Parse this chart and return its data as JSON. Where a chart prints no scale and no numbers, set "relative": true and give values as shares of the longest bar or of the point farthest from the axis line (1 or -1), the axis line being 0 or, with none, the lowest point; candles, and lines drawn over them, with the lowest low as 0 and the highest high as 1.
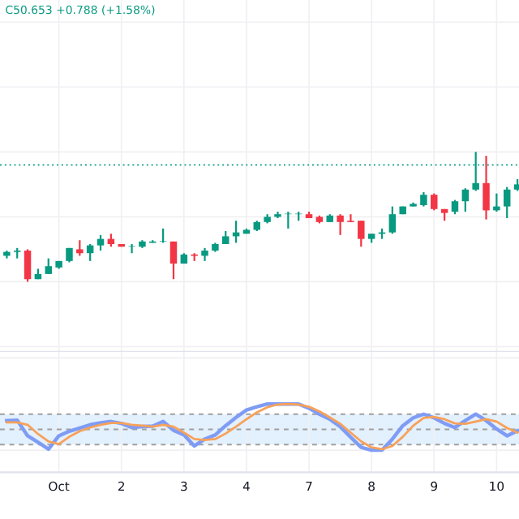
{
  "chart_data": [
    {
      "type": "candlestick",
      "relative": true,
      "tick_labels": false,
      "grid": true,
      "categories": [
        null,
        null,
        null,
        null,
        null,
        null,
        null,
        null,
        null,
        null,
        null,
        null,
        null,
        null,
        null,
        null,
        null,
        null,
        null,
        null,
        null,
        null,
        null,
        null,
        null,
        null,
        null,
        null,
        null,
        null,
        null,
        null,
        null,
        null,
        null,
        null,
        null,
        null,
        null,
        null,
        null,
        null,
        null,
        null,
        null,
        null,
        null,
        null,
        null,
        null
      ],
      "ohlc": [
        [
          0.2,
          0.24,
          0.18,
          0.23
        ],
        [
          0.23,
          0.26,
          0.18,
          0.24
        ],
        [
          0.24,
          0.25,
          0,
          0.02
        ],
        [
          0.02,
          0.1,
          0.02,
          0.06
        ],
        [
          0.06,
          0.18,
          0.06,
          0.12
        ],
        [
          0.11,
          0.16,
          0.1,
          0.16
        ],
        [
          0.16,
          0.26,
          0.15,
          0.26
        ],
        [
          0.25,
          0.32,
          0.2,
          0.22
        ],
        [
          0.22,
          0.29,
          0.16,
          0.28
        ],
        [
          0.28,
          0.36,
          0.24,
          0.33
        ],
        [
          0.33,
          0.37,
          0.27,
          0.29
        ],
        [
          0.29,
          0.29,
          0.27,
          0.27
        ],
        [
          0.27,
          0.29,
          0.22,
          0.27
        ],
        [
          0.27,
          0.32,
          0.26,
          0.31
        ],
        [
          0.3,
          0.32,
          0.3,
          0.31
        ],
        [
          0.31,
          0.41,
          0.3,
          0.31
        ],
        [
          0.31,
          0.31,
          0.02,
          0.14
        ],
        [
          0.14,
          0.22,
          0.14,
          0.21
        ],
        [
          0.21,
          0.22,
          0.16,
          0.2
        ],
        [
          0.2,
          0.26,
          0.16,
          0.24
        ],
        [
          0.24,
          0.3,
          0.23,
          0.29
        ],
        [
          0.29,
          0.39,
          0.29,
          0.35
        ],
        [
          0.35,
          0.47,
          0.3,
          0.38
        ],
        [
          0.37,
          0.41,
          0.37,
          0.4
        ],
        [
          0.4,
          0.47,
          0.39,
          0.46
        ],
        [
          0.46,
          0.52,
          0.45,
          0.5
        ],
        [
          0.5,
          0.54,
          0.49,
          0.52
        ],
        [
          0.52,
          0.54,
          0.41,
          0.52
        ],
        [
          0.52,
          0.54,
          0.47,
          0.52
        ],
        [
          0.52,
          0.54,
          0.49,
          0.49
        ],
        [
          0.5,
          0.51,
          0.45,
          0.46
        ],
        [
          0.46,
          0.52,
          0.46,
          0.51
        ],
        [
          0.51,
          0.52,
          0.36,
          0.46
        ],
        [
          0.47,
          0.52,
          0.46,
          0.46
        ],
        [
          0.47,
          0.47,
          0.27,
          0.33
        ],
        [
          0.33,
          0.37,
          0.3,
          0.37
        ],
        [
          0.37,
          0.41,
          0.33,
          0.38
        ],
        [
          0.38,
          0.58,
          0.37,
          0.52
        ],
        [
          0.52,
          0.58,
          0.52,
          0.58
        ],
        [
          0.58,
          0.61,
          0.58,
          0.6
        ],
        [
          0.59,
          0.69,
          0.58,
          0.67
        ],
        [
          0.67,
          0.68,
          0.55,
          0.56
        ],
        [
          0.56,
          0.56,
          0.47,
          0.53
        ],
        [
          0.54,
          0.63,
          0.52,
          0.62
        ],
        [
          0.62,
          0.72,
          0.54,
          0.71
        ],
        [
          0.71,
          1.0,
          0.7,
          0.76
        ],
        [
          0.76,
          0.97,
          0.48,
          0.55
        ],
        [
          0.55,
          0.68,
          0.54,
          0.58
        ],
        [
          0.58,
          0.73,
          0.49,
          0.71
        ],
        [
          0.71,
          0.79,
          0.7,
          0.75
        ]
      ],
      "colors": [
        "#089981",
        "#089981",
        "#f23645",
        "#089981",
        "#089981",
        "#089981",
        "#089981",
        "#f23645",
        "#089981",
        "#089981",
        "#f23645",
        "#f23645",
        "#089981",
        "#089981",
        "#089981",
        "#089981",
        "#f23645",
        "#089981",
        "#f23645",
        "#089981",
        "#089981",
        "#089981",
        "#089981",
        "#089981",
        "#089981",
        "#089981",
        "#089981",
        "#089981",
        "#089981",
        "#f23645",
        "#f23645",
        "#089981",
        "#f23645",
        "#f23645",
        "#f23645",
        "#089981",
        "#089981",
        "#089981",
        "#089981",
        "#089981",
        "#089981",
        "#f23645",
        "#f23645",
        "#089981",
        "#089981",
        "#089981",
        "#f23645",
        "#089981",
        "#089981",
        "#089981"
      ],
      "ref_lines": [
        {
          "axis": "y",
          "value": 0.9,
          "color": "#089981",
          "line_style": "dotted"
        }
      ],
      "annotations": [
        "C50.653 +0.788 (+1.58%)"
      ]
    },
    {
      "type": "line",
      "relative": true,
      "tick_labels": "x",
      "grid": true,
      "marker": "none",
      "line_style": "solid",
      "categories": [
        null,
        null,
        null,
        null,
        null,
        "Oct",
        null,
        null,
        null,
        null,
        null,
        "2",
        null,
        null,
        null,
        null,
        null,
        "3",
        null,
        null,
        null,
        null,
        null,
        "4",
        null,
        null,
        null,
        null,
        null,
        "7",
        null,
        null,
        null,
        null,
        null,
        "8",
        null,
        null,
        null,
        null,
        null,
        "9",
        null,
        null,
        null,
        null,
        null,
        "10",
        null,
        null
      ],
      "series": [
        {
          "color": "#7f9cf5",
          "values": [
            0.64,
            0.65,
            0.31,
            0.17,
            0.02,
            0.31,
            0.41,
            0.48,
            0.55,
            0.59,
            0.62,
            0.58,
            0.49,
            0.51,
            0.52,
            0.62,
            0.43,
            0.33,
            0.09,
            0.24,
            0.33,
            0.53,
            0.71,
            0.87,
            0.94,
            1,
            1,
            1,
            1,
            0.91,
            0.78,
            0.67,
            0.51,
            0.28,
            0.06,
            0,
            0,
            0.24,
            0.53,
            0.7,
            0.78,
            0.7,
            0.58,
            0.49,
            0.64,
            0.78,
            0.64,
            0.46,
            0.31,
            0.42
          ]
        },
        {
          "color": "#f7a15a",
          "values": [
            0.6,
            0.6,
            0.55,
            0.35,
            0.19,
            0.13,
            0.29,
            0.41,
            0.49,
            0.55,
            0.59,
            0.59,
            0.55,
            0.53,
            0.51,
            0.55,
            0.51,
            0.38,
            0.24,
            0.22,
            0.24,
            0.36,
            0.51,
            0.67,
            0.82,
            0.93,
            0.99,
            1,
            0.99,
            0.94,
            0.84,
            0.71,
            0.57,
            0.38,
            0.19,
            0.06,
            0.02,
            0.09,
            0.29,
            0.53,
            0.7,
            0.72,
            0.67,
            0.58,
            0.57,
            0.62,
            0.67,
            0.62,
            0.48,
            0.38
          ]
        }
      ],
      "bands": [
        {
          "axis": "y",
          "from": 0.12,
          "to": 0.78,
          "color": "#e3f0fd"
        }
      ],
      "ref_lines": [
        {
          "axis": "y",
          "value": 0.78,
          "color": "#a0a0a0",
          "line_style": "dashed"
        },
        {
          "axis": "y",
          "value": 0.45,
          "color": "#a0a0a0",
          "line_style": "dashed"
        },
        {
          "axis": "y",
          "value": 0.12,
          "color": "#a0a0a0",
          "line_style": "dashed"
        }
      ]
    }
  ]
}
